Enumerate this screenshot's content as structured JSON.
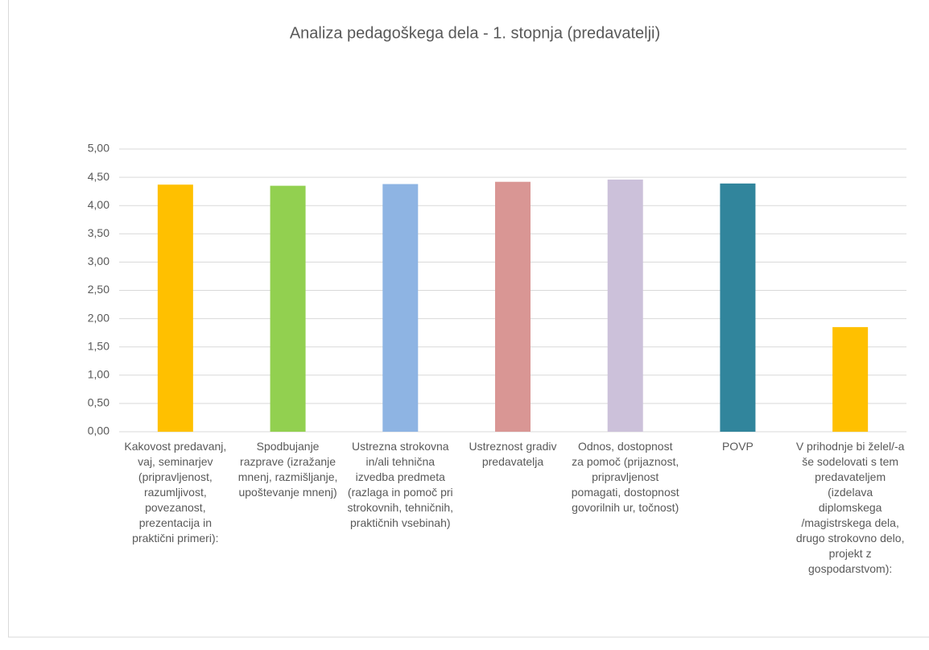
{
  "chart_data": {
    "type": "bar",
    "title": "Analiza pedagoškega dela - 1. stopnja (predavatelji)",
    "categories": [
      "Kakovost predavanj, vaj, seminarjev (pripravljenost, razumljivost, povezanost, prezentacija in praktični primeri):",
      "Spodbujanje razprave (izražanje mnenj, razmišljanje, upoštevanje mnenj)",
      "Ustrezna strokovna in/ali tehnična izvedba predmeta (razlaga in pomoč pri strokovnih, tehničnih, praktičnih vsebinah)",
      "Ustreznost gradiv predavatelja",
      "Odnos, dostopnost za pomoč (prijaznost, pripravljenost pomagati, dostopnost govorilnih ur, točnost)",
      "POVP",
      "V prihodnje bi želel/-a še sodelovati s tem predavateljem (izdelava diplomskega /magistrskega dela, drugo strokovno delo, projekt z gospodarstvom):"
    ],
    "values": [
      4.37,
      4.35,
      4.38,
      4.42,
      4.46,
      4.39,
      1.85
    ],
    "colors": [
      "#ffc000",
      "#92d050",
      "#8eb4e3",
      "#d99694",
      "#ccc1da",
      "#31859c",
      "#ffc000"
    ],
    "ylim": [
      0,
      5
    ],
    "yticks": [
      {
        "value": 0,
        "label": "0,00"
      },
      {
        "value": 0.5,
        "label": "0,50"
      },
      {
        "value": 1,
        "label": "1,00"
      },
      {
        "value": 1.5,
        "label": "1,50"
      },
      {
        "value": 2,
        "label": "2,00"
      },
      {
        "value": 2.5,
        "label": "2,50"
      },
      {
        "value": 3,
        "label": "3,00"
      },
      {
        "value": 3.5,
        "label": "3,50"
      },
      {
        "value": 4,
        "label": "4,00"
      },
      {
        "value": 4.5,
        "label": "4,50"
      },
      {
        "value": 5,
        "label": "5,00"
      }
    ],
    "grid": true
  }
}
